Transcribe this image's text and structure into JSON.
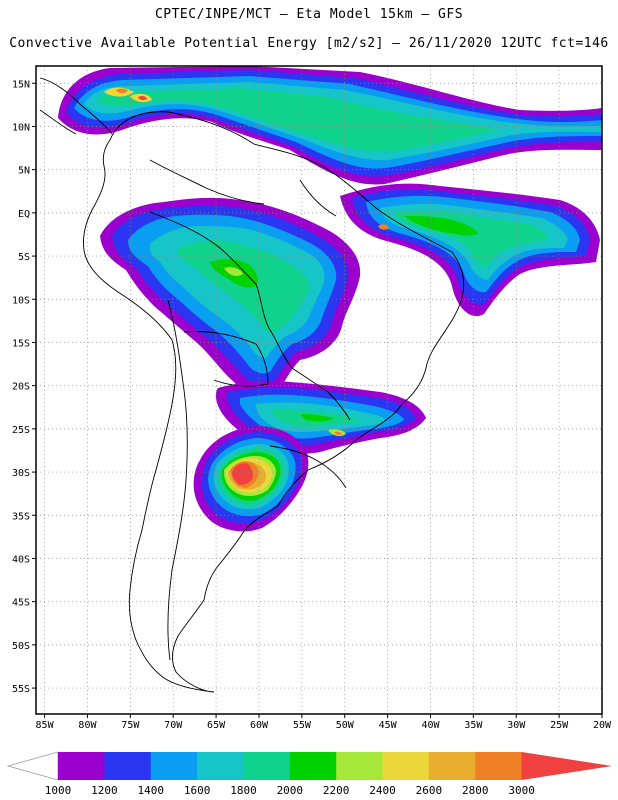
{
  "header": {
    "title_line1": "CPTEC/INPE/MCT –  Eta Model 15km – GFS",
    "title_line2": "Convective Available Potential Energy [m2/s2] – 26/11/2020 12UTC fct=146"
  },
  "map": {
    "lat_labels": [
      {
        "lat": 15,
        "text": "15N"
      },
      {
        "lat": 10,
        "text": "10N"
      },
      {
        "lat": 5,
        "text": "5N"
      },
      {
        "lat": 0,
        "text": "EQ"
      },
      {
        "lat": -5,
        "text": "5S"
      },
      {
        "lat": -10,
        "text": "10S"
      },
      {
        "lat": -15,
        "text": "15S"
      },
      {
        "lat": -20,
        "text": "20S"
      },
      {
        "lat": -25,
        "text": "25S"
      },
      {
        "lat": -30,
        "text": "30S"
      },
      {
        "lat": -35,
        "text": "35S"
      },
      {
        "lat": -40,
        "text": "40S"
      },
      {
        "lat": -45,
        "text": "45S"
      },
      {
        "lat": -50,
        "text": "50S"
      },
      {
        "lat": -55,
        "text": "55S"
      }
    ],
    "lon_labels": [
      {
        "lon": -85,
        "text": "85W"
      },
      {
        "lon": -80,
        "text": "80W"
      },
      {
        "lon": -75,
        "text": "75W"
      },
      {
        "lon": -70,
        "text": "70W"
      },
      {
        "lon": -65,
        "text": "65W"
      },
      {
        "lon": -60,
        "text": "60W"
      },
      {
        "lon": -55,
        "text": "55W"
      },
      {
        "lon": -50,
        "text": "50W"
      },
      {
        "lon": -45,
        "text": "45W"
      },
      {
        "lon": -40,
        "text": "40W"
      },
      {
        "lon": -35,
        "text": "35W"
      },
      {
        "lon": -30,
        "text": "30W"
      },
      {
        "lon": -25,
        "text": "25W"
      },
      {
        "lon": -20,
        "text": "20W"
      }
    ],
    "lon_range": [
      -86,
      -20
    ],
    "lat_range": [
      -58,
      17
    ],
    "grid": "dotted"
  },
  "colorbar": {
    "labels": [
      "1000",
      "1200",
      "1400",
      "1600",
      "1800",
      "2000",
      "2200",
      "2400",
      "2600",
      "2800",
      "3000"
    ],
    "colors": [
      "#9b00cf",
      "#2a36f2",
      "#0a9ef2",
      "#15c5c8",
      "#0fd38c",
      "#00d100",
      "#a6e83a",
      "#ecd83a",
      "#e9ae2e",
      "#f08026",
      "#f04040"
    ],
    "below_color": "#ffffff",
    "above_color": "#f04040"
  },
  "cape_regions": [
    {
      "name": "caribbean-band",
      "level": 4
    },
    {
      "name": "amazon-cluster",
      "level": 3
    },
    {
      "name": "atlantic-itcz-band",
      "level": 4
    },
    {
      "name": "central-brazil-cluster",
      "level": 3
    },
    {
      "name": "paraguay-southbrazil-band",
      "level": 4
    },
    {
      "name": "argentina-core",
      "level": 11
    }
  ]
}
